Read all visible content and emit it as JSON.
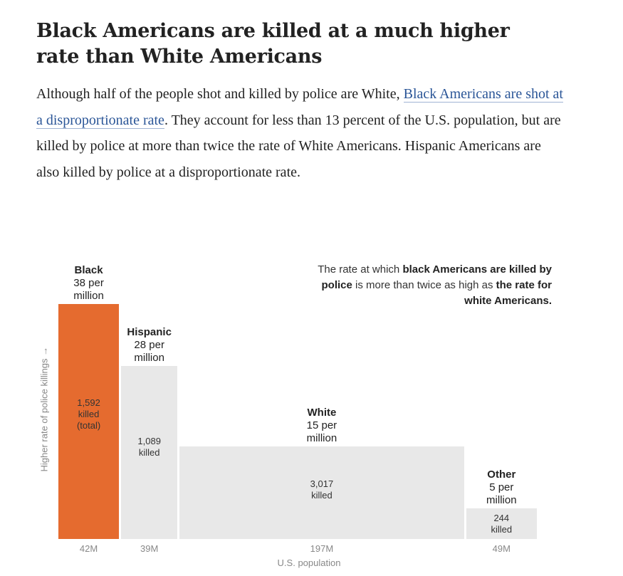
{
  "title": "Black Americans are killed at a much higher rate than White Americans",
  "description": {
    "before": "Although half of the people shot and killed by police are White, ",
    "link": "Black Americans are shot at a disproportionate rate",
    "after": ". They account for less than 13 percent of the U.S. population, but are killed by police at more than twice the rate of White Americans. Hispanic Americans are also killed by police at a disproportionate rate."
  },
  "chart_data": {
    "type": "bar",
    "title": "",
    "xlabel": "U.S. population",
    "ylabel": "Higher rate of police killings →",
    "categories": [
      "Black",
      "Hispanic",
      "White",
      "Other"
    ],
    "rate_label": [
      "38 per million",
      "28 per million",
      "15 per million",
      "5 per million"
    ],
    "values": [
      38,
      28,
      15,
      5
    ],
    "population_millions": [
      42,
      39,
      197,
      49
    ],
    "population_labels": [
      "42M",
      "39M",
      "197M",
      "49M"
    ],
    "killed_labels": [
      [
        "1,592",
        "killed",
        "(total)"
      ],
      [
        "1,089",
        "killed"
      ],
      [
        "3,017",
        "killed"
      ],
      [
        "244",
        "killed"
      ]
    ],
    "colors": [
      "#e56b2f",
      "#e8e8e8",
      "#e8e8e8",
      "#e8e8e8"
    ],
    "ylim": [
      0,
      38
    ],
    "annotation": {
      "p1": "The rate at which ",
      "b1": "black Americans are killed by police",
      "p2": " is more than twice as high as ",
      "b2": "the rate for white Americans."
    }
  }
}
